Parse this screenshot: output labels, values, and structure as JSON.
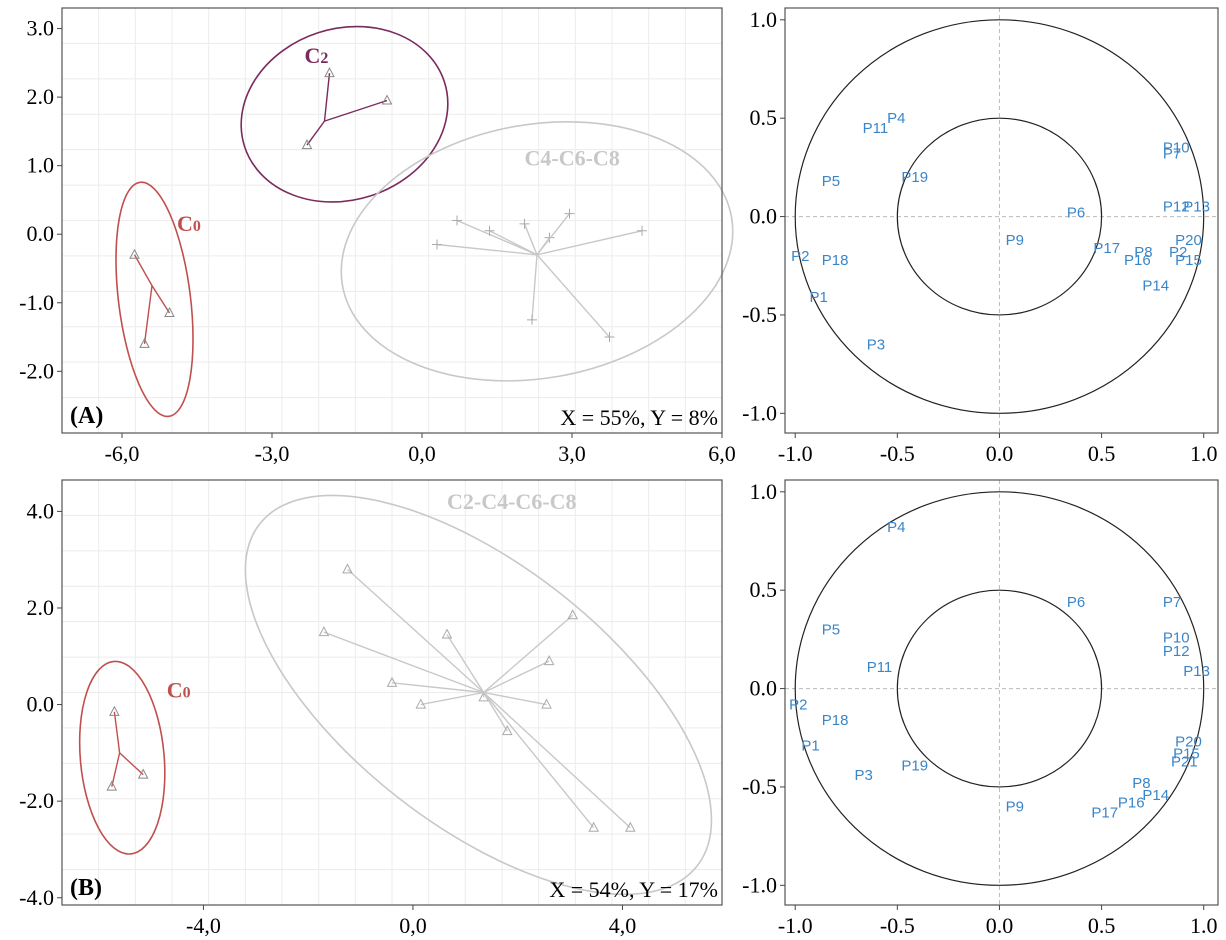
{
  "chart_data": [
    {
      "type": "scatter",
      "panel_label": "(A)",
      "annotation": "X = 55%, Y = 8%",
      "xlim": [
        -7.2,
        6.0
      ],
      "ylim": [
        -2.9,
        3.3
      ],
      "xticks": [
        "-6,0",
        "-3,0",
        "0,0",
        "3,0",
        "6,0"
      ],
      "xtick_values": [
        -6,
        -3,
        0,
        3,
        6
      ],
      "yticks": [
        "3.0",
        "2.0",
        "1.0",
        "0.0",
        "-1.0",
        "-2.0"
      ],
      "ytick_values": [
        3,
        2,
        1,
        0,
        -1,
        -2
      ],
      "grid": true,
      "groups": [
        {
          "name": "C0",
          "label_sub": "0",
          "label_main": "C",
          "color": "#c0504d",
          "marker": "triangle",
          "label_pos": [
            -4.9,
            0.05
          ],
          "centroid": [
            -5.4,
            -0.75
          ],
          "ellipse": {
            "cx": -5.35,
            "cy": -0.95,
            "rx": 0.72,
            "ry": 1.72,
            "angle": -7
          },
          "points": [
            [
              -5.75,
              -0.3
            ],
            [
              -5.05,
              -1.15
            ],
            [
              -5.55,
              -1.6
            ]
          ]
        },
        {
          "name": "C2",
          "label_sub": "2",
          "label_main": "C",
          "color": "#7b2a5c",
          "marker": "triangle",
          "label_pos": [
            -2.35,
            2.5
          ],
          "centroid": [
            -1.95,
            1.65
          ],
          "ellipse": {
            "cx": -1.55,
            "cy": 1.75,
            "rx": 2.1,
            "ry": 1.25,
            "angle": -18
          },
          "points": [
            [
              -1.85,
              2.35
            ],
            [
              -0.7,
              1.95
            ],
            [
              -2.3,
              1.3
            ]
          ]
        },
        {
          "name": "C4-C6-C8",
          "label_main": "C4-C6-C8",
          "color": "#c8c8c8",
          "marker": "cross",
          "label_pos": [
            2.05,
            1.0
          ],
          "centroid": [
            2.3,
            -0.3
          ],
          "ellipse": {
            "cx": 2.3,
            "cy": -0.25,
            "rx": 3.95,
            "ry": 1.85,
            "angle": -10
          },
          "points": [
            [
              0.3,
              -0.15
            ],
            [
              0.7,
              0.2
            ],
            [
              1.35,
              0.05
            ],
            [
              2.05,
              0.15
            ],
            [
              2.55,
              -0.05
            ],
            [
              2.95,
              0.3
            ],
            [
              4.4,
              0.05
            ],
            [
              3.75,
              -1.5
            ],
            [
              2.2,
              -1.25
            ]
          ]
        }
      ]
    },
    {
      "type": "scatter",
      "panel_label": "",
      "annotation": "",
      "xlim": [
        -1.05,
        1.07
      ],
      "ylim": [
        -1.1,
        1.06
      ],
      "xticks": [
        "-1.0",
        "-0.5",
        "0.0",
        "0.5",
        "1.0"
      ],
      "xtick_values": [
        -1,
        -0.5,
        0,
        0.5,
        1
      ],
      "yticks": [
        "1.0",
        "0.5",
        "0.0",
        "-0.5",
        "-1.0"
      ],
      "ytick_values": [
        1,
        0.5,
        0,
        -0.5,
        -1
      ],
      "circles": [
        1.0,
        0.5
      ],
      "variables": [
        {
          "label": "P4",
          "x": -0.55,
          "y": 0.5
        },
        {
          "label": "P11",
          "x": -0.67,
          "y": 0.45
        },
        {
          "label": "P5",
          "x": -0.87,
          "y": 0.18
        },
        {
          "label": "P19",
          "x": -0.48,
          "y": 0.2
        },
        {
          "label": "P10",
          "x": 0.8,
          "y": 0.35
        },
        {
          "label": "P7",
          "x": 0.8,
          "y": 0.32
        },
        {
          "label": "P12",
          "x": 0.8,
          "y": 0.05
        },
        {
          "label": "P13",
          "x": 0.9,
          "y": 0.05
        },
        {
          "label": "P6",
          "x": 0.33,
          "y": 0.02
        },
        {
          "label": "P9",
          "x": 0.03,
          "y": -0.12
        },
        {
          "label": "P17",
          "x": 0.46,
          "y": -0.16
        },
        {
          "label": "P8",
          "x": 0.66,
          "y": -0.18
        },
        {
          "label": "P16",
          "x": 0.61,
          "y": -0.22
        },
        {
          "label": "P20",
          "x": 0.86,
          "y": -0.12
        },
        {
          "label": "P2",
          "x": 0.83,
          "y": -0.18
        },
        {
          "label": "P15",
          "x": 0.86,
          "y": -0.22
        },
        {
          "label": "P14",
          "x": 0.7,
          "y": -0.35
        },
        {
          "label": "P2",
          "x": -1.02,
          "y": -0.2
        },
        {
          "label": "P18",
          "x": -0.87,
          "y": -0.22
        },
        {
          "label": "P1",
          "x": -0.93,
          "y": -0.41
        },
        {
          "label": "P3",
          "x": -0.65,
          "y": -0.65
        }
      ]
    },
    {
      "type": "scatter",
      "panel_label": "(B)",
      "annotation": "X = 54%, Y = 17%",
      "xlim": [
        -6.7,
        5.9
      ],
      "ylim": [
        -4.15,
        4.65
      ],
      "xticks": [
        "-4,0",
        "0,0",
        "4,0"
      ],
      "xtick_values": [
        -4,
        0,
        4
      ],
      "yticks": [
        "4.0",
        "2.0",
        "0.0",
        "-2.0",
        "-4.0"
      ],
      "ytick_values": [
        4,
        2,
        0,
        -2,
        -4
      ],
      "grid": true,
      "groups": [
        {
          "name": "C0",
          "label_main": "C",
          "label_sub": "0",
          "color": "#c0504d",
          "marker": "triangle",
          "label_pos": [
            -4.7,
            0.15
          ],
          "centroid": [
            -5.6,
            -1.0
          ],
          "ellipse": {
            "cx": -5.55,
            "cy": -1.1,
            "rx": 0.8,
            "ry": 2.0,
            "angle": -5
          },
          "points": [
            [
              -5.7,
              -0.15
            ],
            [
              -5.15,
              -1.45
            ],
            [
              -5.75,
              -1.7
            ]
          ]
        },
        {
          "name": "C2-C4-C6-C8",
          "label_main": "C2-C4-C6-C8",
          "color": "#c8c8c8",
          "marker": "triangle",
          "label_pos": [
            0.65,
            4.05
          ],
          "centroid": [
            1.35,
            0.25
          ],
          "ellipse": {
            "cx": 1.25,
            "cy": 0.2,
            "rx": 5.3,
            "ry": 2.7,
            "angle": 38
          },
          "points": [
            [
              -1.25,
              2.8
            ],
            [
              -1.7,
              1.5
            ],
            [
              0.65,
              1.45
            ],
            [
              -0.4,
              0.45
            ],
            [
              0.15,
              0.0
            ],
            [
              1.35,
              0.15
            ],
            [
              2.6,
              0.9
            ],
            [
              3.05,
              1.85
            ],
            [
              2.55,
              0.0
            ],
            [
              1.8,
              -0.55
            ],
            [
              3.45,
              -2.55
            ],
            [
              4.15,
              -2.55
            ]
          ]
        }
      ]
    },
    {
      "type": "scatter",
      "panel_label": "",
      "annotation": "",
      "xlim": [
        -1.05,
        1.07
      ],
      "ylim": [
        -1.1,
        1.06
      ],
      "xticks": [
        "-1.0",
        "-0.5",
        "0.0",
        "0.5",
        "1.0"
      ],
      "xtick_values": [
        -1,
        -0.5,
        0,
        0.5,
        1
      ],
      "yticks": [
        "1.0",
        "0.5",
        "0.0",
        "-0.5",
        "-1.0"
      ],
      "ytick_values": [
        1,
        0.5,
        0,
        -0.5,
        -1
      ],
      "circles": [
        1.0,
        0.5
      ],
      "variables": [
        {
          "label": "P4",
          "x": -0.55,
          "y": 0.82
        },
        {
          "label": "P6",
          "x": 0.33,
          "y": 0.44
        },
        {
          "label": "P7",
          "x": 0.8,
          "y": 0.44
        },
        {
          "label": "P5",
          "x": -0.87,
          "y": 0.3
        },
        {
          "label": "P10",
          "x": 0.8,
          "y": 0.26
        },
        {
          "label": "P12",
          "x": 0.8,
          "y": 0.19
        },
        {
          "label": "P13",
          "x": 0.9,
          "y": 0.09
        },
        {
          "label": "P11",
          "x": -0.65,
          "y": 0.11
        },
        {
          "label": "P2",
          "x": -1.03,
          "y": -0.08
        },
        {
          "label": "P18",
          "x": -0.87,
          "y": -0.16
        },
        {
          "label": "P20",
          "x": 0.86,
          "y": -0.27
        },
        {
          "label": "P1",
          "x": -0.97,
          "y": -0.29
        },
        {
          "label": "P15",
          "x": 0.85,
          "y": -0.33
        },
        {
          "label": "P21",
          "x": 0.84,
          "y": -0.37
        },
        {
          "label": "P3",
          "x": -0.71,
          "y": -0.44
        },
        {
          "label": "P19",
          "x": -0.48,
          "y": -0.39
        },
        {
          "label": "P8",
          "x": 0.65,
          "y": -0.48
        },
        {
          "label": "P14",
          "x": 0.7,
          "y": -0.54
        },
        {
          "label": "P16",
          "x": 0.58,
          "y": -0.58
        },
        {
          "label": "P17",
          "x": 0.45,
          "y": -0.63
        },
        {
          "label": "P9",
          "x": 0.03,
          "y": -0.6
        }
      ]
    }
  ]
}
